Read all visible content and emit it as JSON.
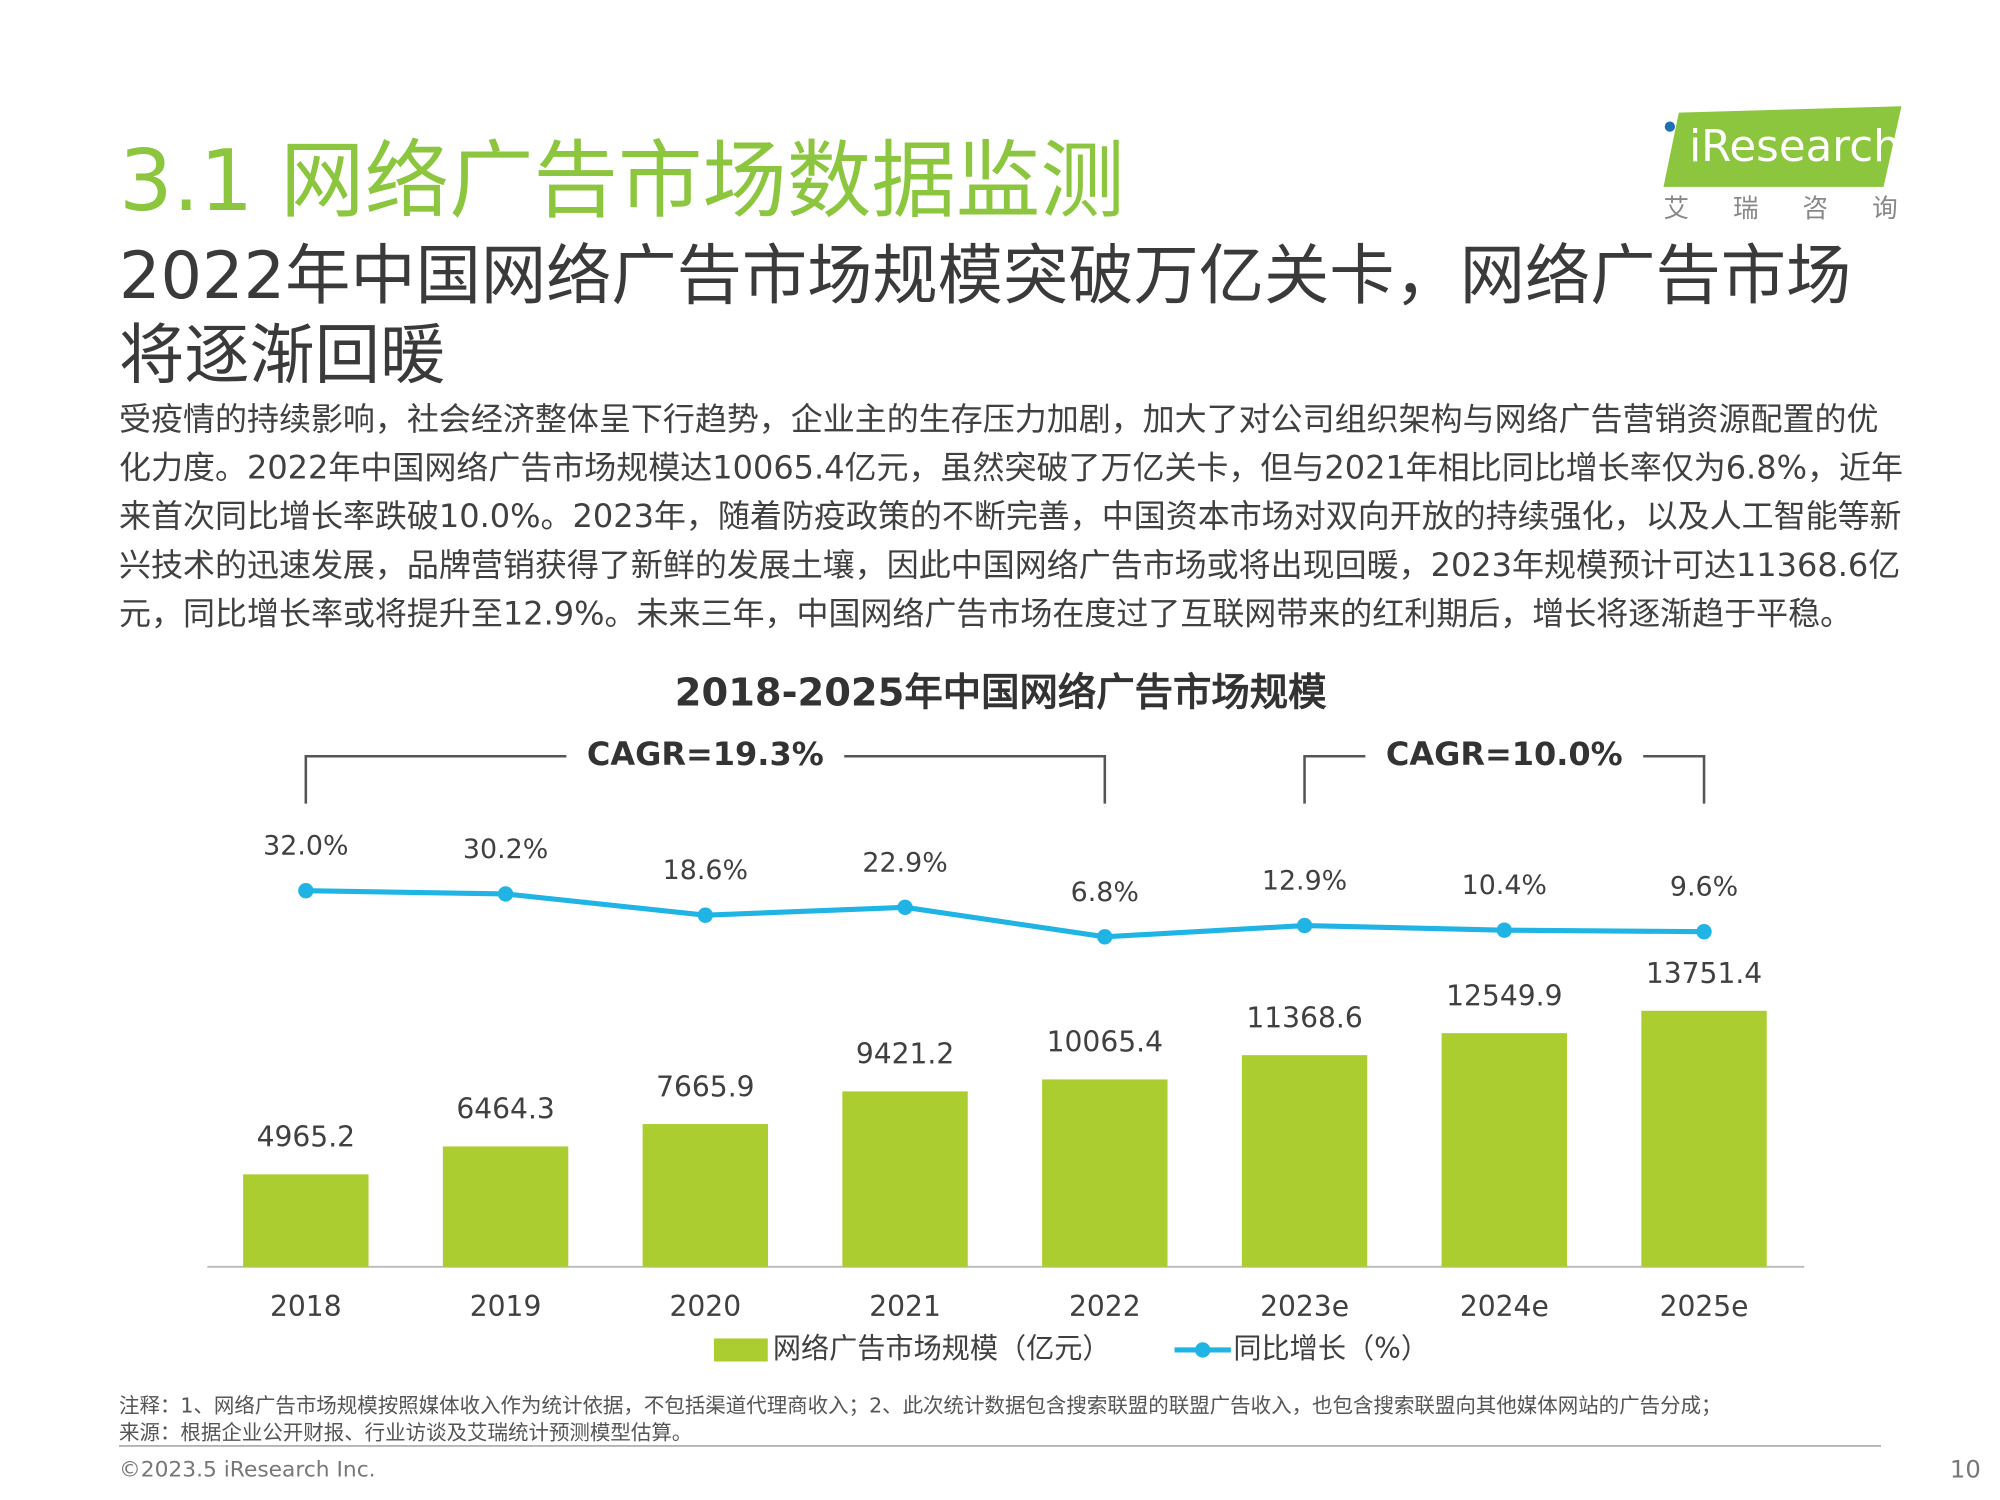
{
  "header": {
    "title": "3.1 网络广告市场数据监测",
    "logo": "iResearch",
    "logo_sub": "艾 瑞 咨 询"
  },
  "heading": "2022年中国网络广告市场规模突破万亿关卡，网络广告市场将逐渐回暖",
  "paragraph": "受疫情的持续影响，社会经济整体呈下行趋势，企业主的生存压力加剧，加大了对公司组织架构与网络广告营销资源配置的优化力度。2022年中国网络广告市场规模达10065.4亿元，虽然突破了万亿关卡，但与2021年相比同比增长率仅为6.8%，近年来首次同比增长率跌破10.0%。2023年，随着防疫政策的不断完善，中国资本市场对双向开放的持续强化，以及人工智能等新兴技术的迅速发展，品牌营销获得了新鲜的发展土壤，因此中国网络广告市场或将出现回暖，2023年规模预计可达11368.6亿元，同比增长率或将提升至12.9%。未来三年，中国网络广告市场在度过了互联网带来的红利期后，增长将逐渐趋于平稳。",
  "chart_data": {
    "type": "combo",
    "title": "2018-2025年中国网络广告市场规模",
    "categories": [
      "2018",
      "2019",
      "2020",
      "2021",
      "2022",
      "2023e",
      "2024e",
      "2025e"
    ],
    "series": [
      {
        "name": "网络广告市场规模（亿元）",
        "type": "bar",
        "color": "#abcd2f",
        "values": [
          4965.2,
          6464.3,
          7665.9,
          9421.2,
          10065.4,
          11368.6,
          12549.9,
          13751.4
        ]
      },
      {
        "name": "同比增长（%）",
        "type": "line",
        "color": "#1fb4e4",
        "values": [
          32.0,
          30.2,
          18.6,
          22.9,
          6.8,
          12.9,
          10.4,
          9.6
        ],
        "value_labels": [
          "32.0%",
          "30.2%",
          "18.6%",
          "22.9%",
          "6.8%",
          "12.9%",
          "10.4%",
          "9.6%"
        ]
      }
    ],
    "annotations": [
      {
        "text": "CAGR=19.3%",
        "from": "2018",
        "to": "2022"
      },
      {
        "text": "CAGR=10.0%",
        "from": "2023e",
        "to": "2025e"
      }
    ],
    "legend": "bottom"
  },
  "footer": {
    "notes": [
      "注释：1、网络广告市场规模按照媒体收入作为统计依据，不包括渠道代理商收入；2、此次统计数据包含搜索联盟的联盟广告收入，也包含搜索联盟向其他媒体网站的广告分成；",
      "来源：根据企业公开财报、行业访谈及艾瑞统计预测模型估算。"
    ],
    "copyright": "©2023.5 iResearch Inc.",
    "page_number": 10
  }
}
